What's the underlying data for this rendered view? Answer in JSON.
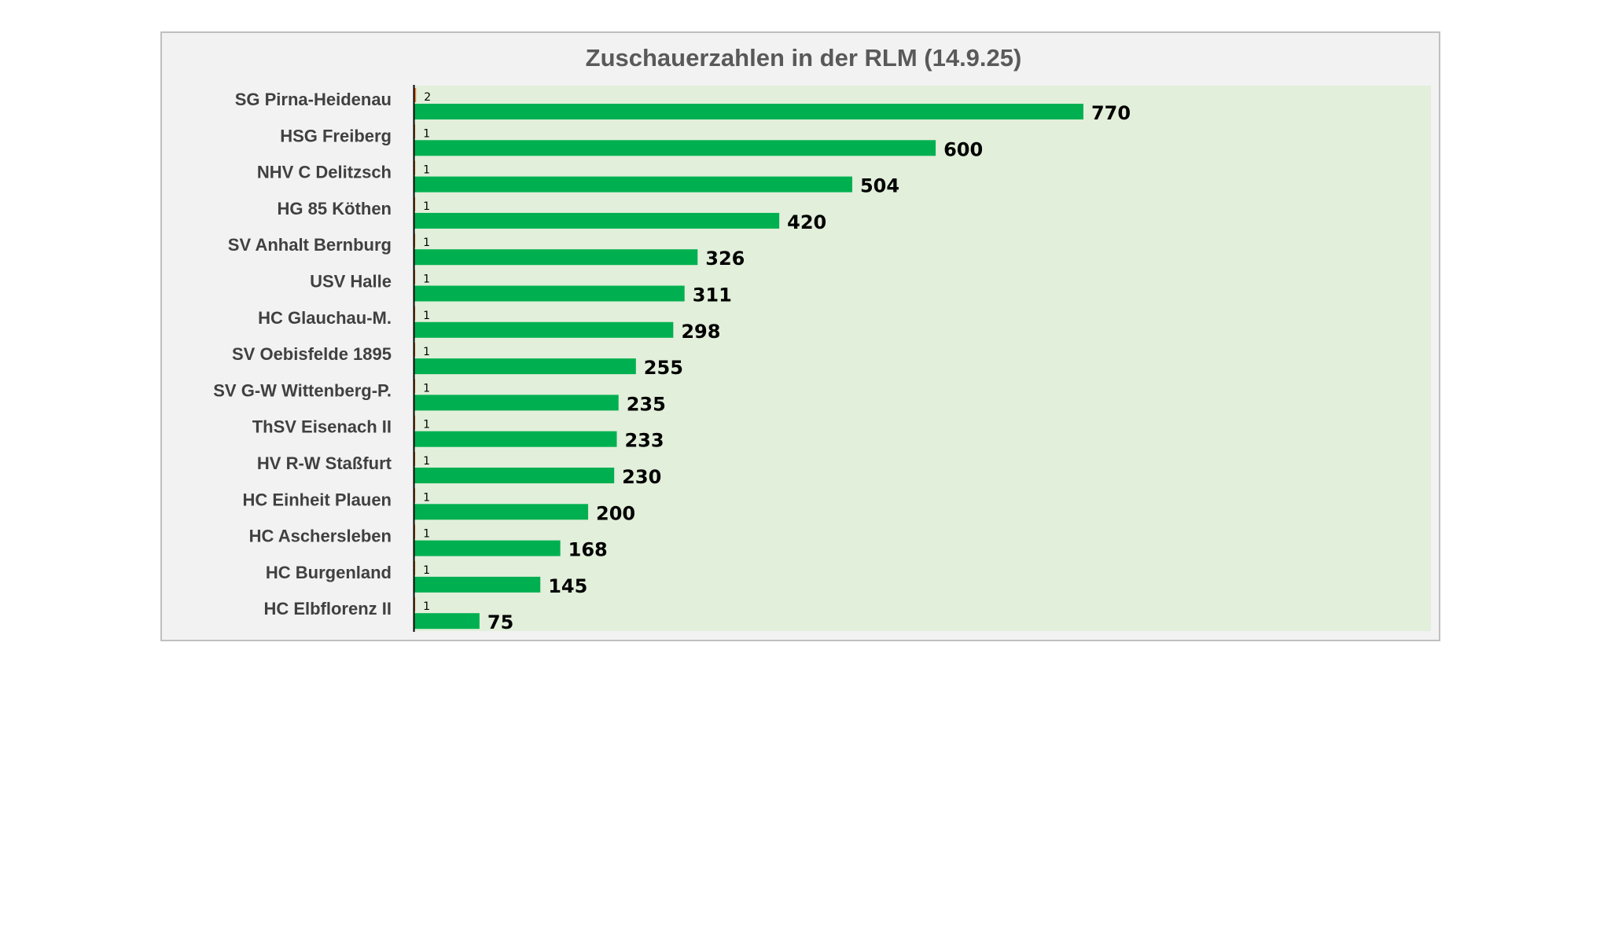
{
  "chart_data": {
    "type": "bar",
    "orientation": "horizontal",
    "title": "Zuschauerzahlen in der RLM (14.9.25)",
    "xlabel": "",
    "ylabel": "",
    "xlim": [
      0,
      1170
    ],
    "grid": false,
    "legend": "none",
    "categories": [
      "SG Pirna-Heidenau",
      "HSG Freiberg",
      "NHV C Delitzsch",
      "HG 85 Köthen",
      "SV Anhalt Bernburg",
      "USV Halle",
      "HC Glauchau-M.",
      "SV Oebisfelde 1895",
      "SV G-W Wittenberg-P.",
      "ThSV Eisenach II",
      "HV R-W Staßfurt",
      "HC Einheit Plauen",
      "HC Aschersleben",
      "HC Burgenland",
      "HC Elbflorenz II"
    ],
    "series": [
      {
        "values": [
          2,
          1,
          1,
          1,
          1,
          1,
          1,
          1,
          1,
          1,
          1,
          1,
          1,
          1,
          1
        ],
        "color": "#ed7d31"
      },
      {
        "values": [
          770,
          600,
          504,
          420,
          326,
          311,
          298,
          255,
          235,
          233,
          230,
          200,
          168,
          145,
          75
        ],
        "color": "#00b050"
      }
    ],
    "colors": {
      "frame_background": "#f2f2f2",
      "plot_background": "#e2efda",
      "frame_border": "#bfbfbf",
      "axis_line": "#000000"
    }
  }
}
